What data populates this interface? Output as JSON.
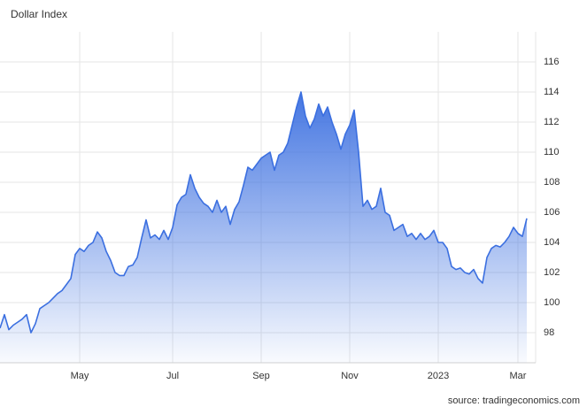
{
  "chart_data": {
    "type": "area",
    "title": "Dollar Index",
    "source": "source: tradingeconomics.com",
    "categories": [
      null,
      null,
      null,
      null,
      null,
      null,
      null,
      null,
      null,
      null,
      null,
      null,
      null,
      null,
      null,
      null,
      null,
      null,
      "May",
      null,
      null,
      null,
      null,
      null,
      null,
      null,
      null,
      null,
      null,
      null,
      null,
      null,
      null,
      null,
      null,
      null,
      null,
      null,
      null,
      "Jul",
      null,
      null,
      null,
      null,
      null,
      null,
      null,
      null,
      null,
      null,
      null,
      null,
      null,
      null,
      null,
      null,
      null,
      null,
      null,
      "Sep",
      null,
      null,
      null,
      null,
      null,
      null,
      null,
      null,
      null,
      null,
      null,
      null,
      null,
      null,
      null,
      null,
      null,
      null,
      null,
      "Nov",
      null,
      null,
      null,
      null,
      null,
      null,
      null,
      null,
      null,
      null,
      null,
      null,
      null,
      null,
      null,
      null,
      null,
      null,
      null,
      "2023",
      null,
      null,
      null,
      null,
      null,
      null,
      null,
      null,
      null,
      null,
      null,
      null,
      null,
      null,
      null,
      null,
      null,
      "Mar",
      null,
      null
    ],
    "values": [
      98.3,
      99.2,
      98.2,
      98.5,
      98.7,
      98.9,
      99.2,
      98.0,
      98.6,
      99.6,
      99.8,
      100.0,
      100.3,
      100.6,
      100.8,
      101.2,
      101.6,
      103.2,
      103.6,
      103.4,
      103.8,
      104.0,
      104.7,
      104.3,
      103.4,
      102.8,
      102.0,
      101.8,
      101.8,
      102.4,
      102.5,
      103.0,
      104.3,
      105.5,
      104.3,
      104.5,
      104.2,
      104.8,
      104.2,
      105.0,
      106.5,
      107.0,
      107.2,
      108.5,
      107.6,
      107.0,
      106.6,
      106.4,
      106.0,
      106.8,
      106.0,
      106.4,
      105.2,
      106.2,
      106.7,
      107.8,
      109.0,
      108.8,
      109.2,
      109.6,
      109.8,
      110.0,
      108.8,
      109.8,
      110.0,
      110.6,
      111.8,
      113.0,
      114.0,
      112.4,
      111.6,
      112.2,
      113.2,
      112.4,
      113.0,
      112.0,
      111.2,
      110.2,
      111.2,
      111.8,
      112.8,
      110.0,
      106.4,
      106.8,
      106.2,
      106.4,
      107.6,
      106.0,
      105.8,
      104.8,
      105.0,
      105.2,
      104.4,
      104.6,
      104.2,
      104.6,
      104.2,
      104.4,
      104.8,
      104.0,
      104.0,
      103.6,
      102.4,
      102.2,
      102.3,
      102.0,
      101.9,
      102.2,
      101.6,
      101.3,
      103.0,
      103.6,
      103.8,
      103.7,
      104.0,
      104.4,
      105.0,
      104.6,
      104.4,
      105.6
    ],
    "color": "#3b6fe0",
    "ylim": [
      96,
      118
    ],
    "yticks": [
      98,
      100,
      102,
      104,
      106,
      108,
      110,
      112,
      114,
      116
    ],
    "grid": true
  }
}
